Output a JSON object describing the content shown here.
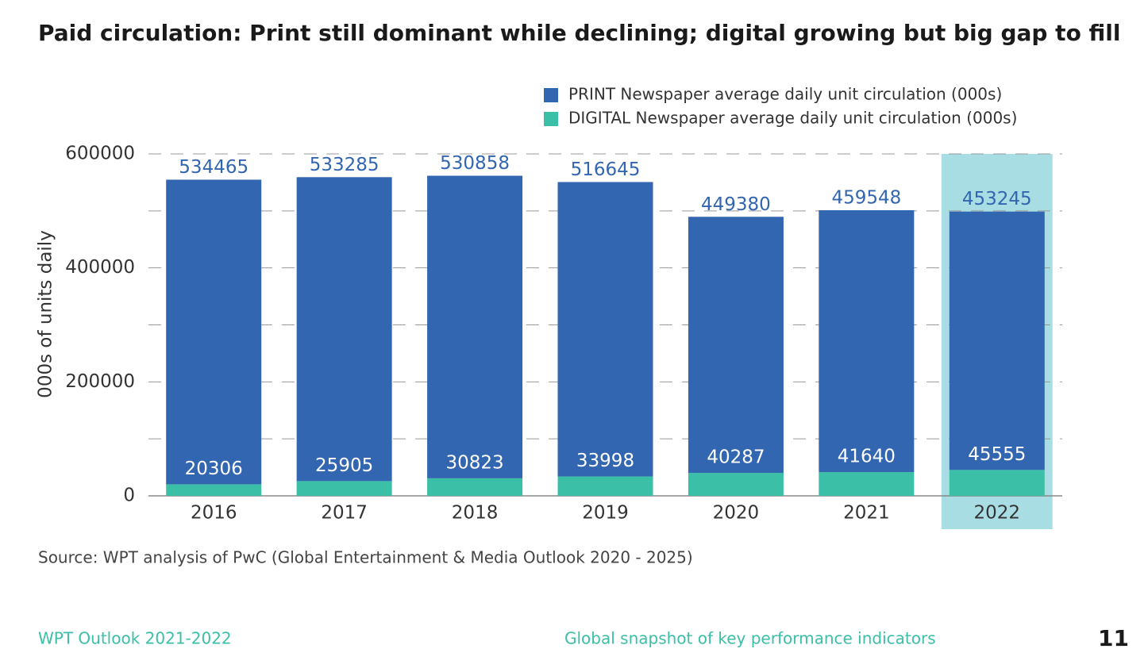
{
  "chart_data": {
    "type": "stacked-bar",
    "title": "Paid circulation: Print still dominant while declining; digital growing but big gap to fill",
    "y_label": "000s of units daily",
    "categories": [
      "2016",
      "2017",
      "2018",
      "2019",
      "2020",
      "2021",
      "2022"
    ],
    "series": [
      {
        "name": "DIGITAL Newspaper average daily unit circulation (000s)",
        "color": "#3bbfa6",
        "label_color": "#ffffff",
        "values": [
          20306,
          25905,
          30823,
          33998,
          40287,
          41640,
          45555
        ]
      },
      {
        "name": "PRINT Newspaper average daily unit circulation (000s)",
        "color": "#3366b0",
        "label_color": "#3366b0",
        "values": [
          534465,
          533285,
          530858,
          516645,
          449380,
          459548,
          453245
        ]
      }
    ],
    "ylim": [
      0,
      600000
    ],
    "yticks": [
      0,
      200000,
      400000,
      600000
    ],
    "minor_yticks": [
      100000,
      300000,
      500000
    ],
    "grid": true,
    "highlight": {
      "category": "2022",
      "color": "#a9dde4"
    },
    "legend": "top-right"
  },
  "source": "Source: WPT analysis of PwC (Global Entertainment & Media Outlook 2020 - 2025)",
  "footer": {
    "left": "WPT Outlook 2021-2022",
    "center": "Global snapshot of key performance indicators",
    "page": "11"
  }
}
